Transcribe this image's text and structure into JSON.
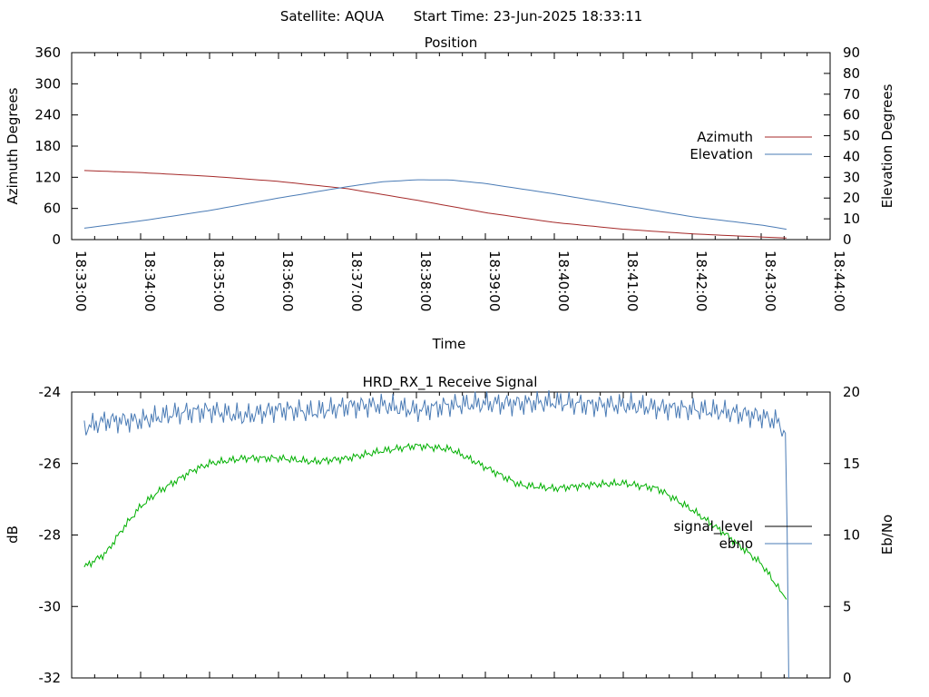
{
  "header": {
    "satellite_label": "Satellite: AQUA",
    "start_time_label": "Start Time: 23-Jun-2025 18:33:11"
  },
  "chart_data": [
    {
      "type": "line",
      "title": "Position",
      "xlabel": "Time",
      "ylabel": "Azimuth Degrees",
      "y2label": "Elevation Degrees",
      "xlim": [
        "18:33:00",
        "18:44:00"
      ],
      "ylim": [
        0,
        360
      ],
      "y2lim": [
        0,
        90
      ],
      "xticks": [
        "18:33:00",
        "18:34:00",
        "18:35:00",
        "18:36:00",
        "18:37:00",
        "18:38:00",
        "18:39:00",
        "18:40:00",
        "18:41:00",
        "18:42:00",
        "18:43:00",
        "18:44:00"
      ],
      "yticks": [
        0,
        60,
        120,
        180,
        240,
        300,
        360
      ],
      "y2ticks": [
        0,
        10,
        20,
        30,
        40,
        50,
        60,
        70,
        80,
        90
      ],
      "legend_position": "right",
      "series": [
        {
          "name": "Azimuth",
          "color": "#a52a2a",
          "axis": "y",
          "x": [
            "18:33:11",
            "18:34:00",
            "18:35:00",
            "18:36:00",
            "18:37:00",
            "18:38:00",
            "18:39:00",
            "18:40:00",
            "18:41:00",
            "18:42:00",
            "18:43:00",
            "18:43:22"
          ],
          "values": [
            133,
            129,
            122,
            112,
            98,
            76,
            52,
            33,
            20,
            11,
            5,
            3
          ]
        },
        {
          "name": "Elevation",
          "color": "#4a7bb5",
          "axis": "y2",
          "x": [
            "18:33:11",
            "18:34:00",
            "18:35:00",
            "18:36:00",
            "18:37:00",
            "18:37:30",
            "18:38:00",
            "18:38:30",
            "18:39:00",
            "18:40:00",
            "18:41:00",
            "18:42:00",
            "18:43:00",
            "18:43:22"
          ],
          "values": [
            5.5,
            9,
            14,
            20,
            25.5,
            27.8,
            28.8,
            28.7,
            27,
            22,
            16.5,
            11,
            7,
            5
          ]
        }
      ]
    },
    {
      "type": "line",
      "title": "HRD_RX_1 Receive Signal",
      "xlabel": "",
      "ylabel": "dB",
      "y2label": "Eb/No",
      "xlim": [
        "18:33:00",
        "18:44:00"
      ],
      "ylim": [
        -32,
        -24
      ],
      "y2lim": [
        0,
        20
      ],
      "yticks": [
        -32,
        -30,
        -28,
        -26,
        -24
      ],
      "y2ticks": [
        0,
        5,
        10,
        15,
        20
      ],
      "legend_position": "right",
      "series": [
        {
          "name": "signal_level",
          "color": "#00b000",
          "legend_color": "#000000",
          "axis": "y",
          "x": [
            "18:33:11",
            "18:33:30",
            "18:33:45",
            "18:34:00",
            "18:34:15",
            "18:34:30",
            "18:34:45",
            "18:35:00",
            "18:35:30",
            "18:36:00",
            "18:36:30",
            "18:37:00",
            "18:37:30",
            "18:38:00",
            "18:38:30",
            "18:39:00",
            "18:39:30",
            "18:40:00",
            "18:40:30",
            "18:41:00",
            "18:41:30",
            "18:42:00",
            "18:42:30",
            "18:43:00",
            "18:43:22"
          ],
          "values": [
            -28.9,
            -28.5,
            -27.8,
            -27.2,
            -26.8,
            -26.5,
            -26.2,
            -26.0,
            -25.85,
            -25.85,
            -25.95,
            -25.85,
            -25.65,
            -25.5,
            -25.6,
            -26.1,
            -26.6,
            -26.7,
            -26.6,
            -26.55,
            -26.7,
            -27.3,
            -28.0,
            -28.8,
            -29.8
          ]
        },
        {
          "name": "ebno",
          "color": "#4a7bb5",
          "axis": "y2",
          "x": [
            "18:33:11",
            "18:33:30",
            "18:34:00",
            "18:34:30",
            "18:35:00",
            "18:35:30",
            "18:36:00",
            "18:36:30",
            "18:37:00",
            "18:37:30",
            "18:38:00",
            "18:38:30",
            "18:39:00",
            "18:39:30",
            "18:40:00",
            "18:40:30",
            "18:41:00",
            "18:41:30",
            "18:42:00",
            "18:42:30",
            "18:43:00",
            "18:43:15",
            "18:43:22",
            "18:43:23",
            "18:43:24"
          ],
          "values": [
            17.5,
            18.0,
            18.0,
            18.5,
            18.7,
            18.3,
            18.8,
            18.6,
            19.0,
            19.1,
            18.7,
            19.1,
            19.2,
            19.2,
            19.3,
            19.1,
            19.1,
            18.9,
            18.8,
            18.6,
            18.3,
            17.9,
            17.0,
            5.0,
            0.0
          ]
        }
      ]
    }
  ]
}
